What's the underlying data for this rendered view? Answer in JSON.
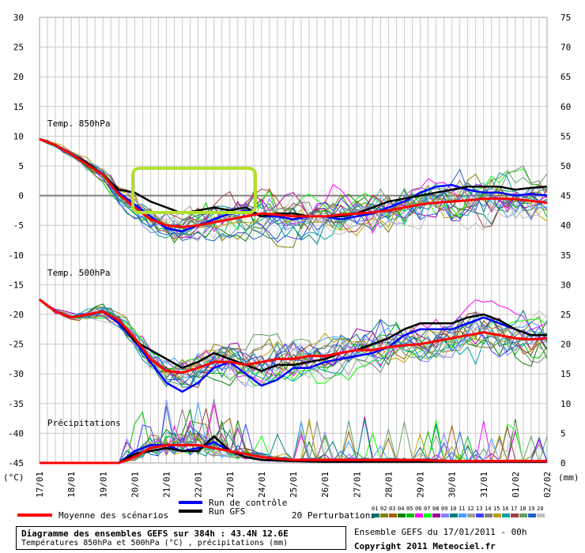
{
  "chart_data": {
    "type": "line",
    "y_left_ticks": [
      30,
      25,
      20,
      15,
      10,
      5,
      0,
      -5,
      -10,
      -15,
      -20,
      -25,
      -30,
      -35,
      -40,
      -45
    ],
    "y_right_ticks": [
      75,
      70,
      65,
      60,
      55,
      50,
      45,
      40,
      35,
      30,
      25,
      20,
      15,
      10,
      5,
      0
    ],
    "ylim_left": [
      -45,
      30
    ],
    "ylim_right_mm": [
      0,
      75
    ],
    "y_unit_left": "(°C)",
    "y_unit_right": "(mm)",
    "x_ticks": [
      "17/01",
      "18/01",
      "19/01",
      "20/01",
      "21/01",
      "22/01",
      "23/01",
      "24/01",
      "25/01",
      "26/01",
      "27/01",
      "28/01",
      "29/01",
      "30/01",
      "31/01",
      "01/02",
      "02/02"
    ],
    "x_days": [
      0,
      16
    ],
    "panel_labels": {
      "t850": "Temp. 850hPa",
      "t500": "Temp. 500hPa",
      "precip": "Précipitations"
    },
    "series": [
      {
        "name": "Moyenne des scénarios",
        "color": "#ff0000",
        "t850": [
          [
            0,
            9.5
          ],
          [
            0.5,
            8.5
          ],
          [
            1,
            7
          ],
          [
            1.5,
            5.2
          ],
          [
            2,
            3.5
          ],
          [
            2.5,
            0.2
          ],
          [
            3,
            -2
          ],
          [
            3.5,
            -4
          ],
          [
            4,
            -5
          ],
          [
            4.5,
            -5.3
          ],
          [
            5,
            -5
          ],
          [
            5.5,
            -4.5
          ],
          [
            6,
            -4
          ],
          [
            6.5,
            -3.5
          ],
          [
            7,
            -3
          ],
          [
            7.5,
            -3.2
          ],
          [
            8,
            -3.5
          ],
          [
            8.5,
            -3.5
          ],
          [
            9,
            -3.5
          ],
          [
            9.5,
            -3.2
          ],
          [
            10,
            -3
          ],
          [
            10.5,
            -2.8
          ],
          [
            11,
            -2.5
          ],
          [
            11.5,
            -2
          ],
          [
            12,
            -1.5
          ],
          [
            12.5,
            -1.2
          ],
          [
            13,
            -1
          ],
          [
            13.5,
            -0.8
          ],
          [
            14,
            -0.5
          ],
          [
            14.5,
            -0.5
          ],
          [
            15,
            -0.6
          ],
          [
            15.5,
            -0.9
          ],
          [
            16,
            -1.2
          ]
        ],
        "t500": [
          [
            0,
            -17.5
          ],
          [
            0.5,
            -19.5
          ],
          [
            1,
            -20.5
          ],
          [
            1.5,
            -20
          ],
          [
            2,
            -19.5
          ],
          [
            2.5,
            -21
          ],
          [
            3,
            -24
          ],
          [
            3.5,
            -27.5
          ],
          [
            4,
            -29.5
          ],
          [
            4.5,
            -29.8
          ],
          [
            5,
            -29
          ],
          [
            5.5,
            -28
          ],
          [
            6,
            -28
          ],
          [
            6.5,
            -28.5
          ],
          [
            7,
            -28
          ],
          [
            7.5,
            -27.5
          ],
          [
            8,
            -27.5
          ],
          [
            8.5,
            -27
          ],
          [
            9,
            -27
          ],
          [
            9.5,
            -26.5
          ],
          [
            10,
            -26
          ],
          [
            10.5,
            -26
          ],
          [
            11,
            -25.5
          ],
          [
            11.5,
            -25.2
          ],
          [
            12,
            -25
          ],
          [
            12.5,
            -24.5
          ],
          [
            13,
            -24
          ],
          [
            13.5,
            -23.5
          ],
          [
            14,
            -23
          ],
          [
            14.5,
            -23.5
          ],
          [
            15,
            -24
          ],
          [
            15.5,
            -24.2
          ],
          [
            16,
            -24
          ]
        ],
        "precip_mm": [
          [
            0,
            0
          ],
          [
            2.5,
            0
          ],
          [
            3,
            1
          ],
          [
            3.5,
            2.5
          ],
          [
            4,
            3
          ],
          [
            4.5,
            3
          ],
          [
            5,
            3
          ],
          [
            5.5,
            2.5
          ],
          [
            6,
            2
          ],
          [
            6.5,
            1.5
          ],
          [
            7,
            1
          ],
          [
            7.5,
            0.7
          ],
          [
            8,
            0.5
          ],
          [
            9,
            0.5
          ],
          [
            10,
            0.5
          ],
          [
            11,
            0.5
          ],
          [
            12,
            0.5
          ],
          [
            13,
            0.3
          ],
          [
            14,
            0.3
          ],
          [
            15,
            0.3
          ],
          [
            16,
            0.3
          ]
        ]
      },
      {
        "name": "Run de contrôle",
        "color": "#0000ff",
        "t850": [
          [
            0,
            9.5
          ],
          [
            0.5,
            8.5
          ],
          [
            1,
            7
          ],
          [
            1.5,
            5.5
          ],
          [
            2,
            3.5
          ],
          [
            2.5,
            0.5
          ],
          [
            3,
            -1.5
          ],
          [
            3.5,
            -3.5
          ],
          [
            4,
            -5.5
          ],
          [
            4.5,
            -6
          ],
          [
            5,
            -5
          ],
          [
            5.5,
            -4
          ],
          [
            6,
            -3
          ],
          [
            6.5,
            -2.5
          ],
          [
            7,
            -3.5
          ],
          [
            7.5,
            -3.5
          ],
          [
            8,
            -4
          ],
          [
            8.5,
            -3.5
          ],
          [
            9,
            -3.5
          ],
          [
            9.5,
            -4
          ],
          [
            10,
            -3.5
          ],
          [
            10.5,
            -3
          ],
          [
            11,
            -2
          ],
          [
            11.5,
            -1
          ],
          [
            12,
            0.5
          ],
          [
            12.5,
            1.5
          ],
          [
            13,
            1.8
          ],
          [
            13.5,
            1
          ],
          [
            14,
            0.5
          ],
          [
            14.5,
            0.5
          ],
          [
            15,
            0
          ],
          [
            15.5,
            0.3
          ],
          [
            16,
            0
          ]
        ],
        "t500": [
          [
            0,
            -17.5
          ],
          [
            0.5,
            -19.5
          ],
          [
            1,
            -20.5
          ],
          [
            1.5,
            -20
          ],
          [
            2,
            -19.5
          ],
          [
            2.5,
            -21.5
          ],
          [
            3,
            -24.5
          ],
          [
            3.5,
            -28
          ],
          [
            4,
            -31.5
          ],
          [
            4.5,
            -33
          ],
          [
            5,
            -31.5
          ],
          [
            5.5,
            -29
          ],
          [
            6,
            -28
          ],
          [
            6.5,
            -30
          ],
          [
            7,
            -32
          ],
          [
            7.5,
            -31
          ],
          [
            8,
            -29
          ],
          [
            8.5,
            -29
          ],
          [
            9,
            -28
          ],
          [
            9.5,
            -27.5
          ],
          [
            10,
            -27
          ],
          [
            10.5,
            -26.5
          ],
          [
            11,
            -25.5
          ],
          [
            11.5,
            -23.5
          ],
          [
            12,
            -22.5
          ],
          [
            12.5,
            -22.5
          ],
          [
            13,
            -22.5
          ],
          [
            13.5,
            -21.5
          ],
          [
            14,
            -20.5
          ],
          [
            14.5,
            -21.5
          ],
          [
            15,
            -22.5
          ],
          [
            15.5,
            -23.5
          ],
          [
            16,
            -23.5
          ]
        ],
        "precip_mm": [
          [
            0,
            0
          ],
          [
            2.5,
            0
          ],
          [
            3,
            2
          ],
          [
            3.5,
            3
          ],
          [
            4,
            3
          ],
          [
            4.5,
            2
          ],
          [
            5,
            2.5
          ],
          [
            5.5,
            3.5
          ],
          [
            6,
            2
          ],
          [
            6.5,
            1
          ],
          [
            7,
            0.5
          ],
          [
            8,
            0.3
          ],
          [
            9,
            0.2
          ],
          [
            10,
            0.2
          ],
          [
            11,
            0.3
          ],
          [
            12,
            0.3
          ],
          [
            13,
            0.2
          ],
          [
            14,
            0.2
          ],
          [
            15,
            0.2
          ],
          [
            16,
            0.2
          ]
        ]
      },
      {
        "name": "Run GFS",
        "color": "#000000",
        "t850": [
          [
            0,
            9.5
          ],
          [
            0.5,
            8.5
          ],
          [
            1,
            7
          ],
          [
            1.5,
            5.5
          ],
          [
            2,
            3.5
          ],
          [
            2.5,
            1
          ],
          [
            3,
            0.5
          ],
          [
            3.5,
            -1
          ],
          [
            4,
            -2
          ],
          [
            4.5,
            -3
          ],
          [
            5,
            -2.5
          ],
          [
            5.5,
            -2
          ],
          [
            6,
            -2.5
          ],
          [
            6.5,
            -2
          ],
          [
            7,
            -3.5
          ],
          [
            7.5,
            -3
          ],
          [
            8,
            -3
          ],
          [
            8.5,
            -3.5
          ],
          [
            9,
            -3.5
          ],
          [
            9.5,
            -3.5
          ],
          [
            10,
            -3
          ],
          [
            10.5,
            -2
          ],
          [
            11,
            -1
          ],
          [
            11.5,
            -0.5
          ],
          [
            12,
            0
          ],
          [
            12.5,
            0.5
          ],
          [
            13,
            1
          ],
          [
            13.5,
            1.5
          ],
          [
            14,
            1.5
          ],
          [
            14.5,
            1.5
          ],
          [
            15,
            1
          ],
          [
            15.5,
            1.3
          ],
          [
            16,
            1.5
          ]
        ],
        "t500": [
          [
            0,
            -17.5
          ],
          [
            0.5,
            -19.5
          ],
          [
            1,
            -20.5
          ],
          [
            1.5,
            -20
          ],
          [
            2,
            -19.5
          ],
          [
            2.5,
            -21
          ],
          [
            3,
            -24.5
          ],
          [
            3.5,
            -26
          ],
          [
            4,
            -27.5
          ],
          [
            4.5,
            -29
          ],
          [
            5,
            -28
          ],
          [
            5.5,
            -26.5
          ],
          [
            6,
            -27.5
          ],
          [
            6.5,
            -28.5
          ],
          [
            7,
            -29.5
          ],
          [
            7.5,
            -28.5
          ],
          [
            8,
            -28.5
          ],
          [
            8.5,
            -28
          ],
          [
            9,
            -27.5
          ],
          [
            9.5,
            -26.5
          ],
          [
            10,
            -26
          ],
          [
            10.5,
            -25
          ],
          [
            11,
            -24
          ],
          [
            11.5,
            -22.5
          ],
          [
            12,
            -21.5
          ],
          [
            12.5,
            -21.5
          ],
          [
            13,
            -21.5
          ],
          [
            13.5,
            -20.5
          ],
          [
            14,
            -20
          ],
          [
            14.5,
            -21
          ],
          [
            15,
            -22.5
          ],
          [
            15.5,
            -23.5
          ],
          [
            16,
            -23.5
          ]
        ],
        "precip_mm": [
          [
            0,
            0
          ],
          [
            2.5,
            0
          ],
          [
            3,
            1.5
          ],
          [
            3.5,
            2
          ],
          [
            4,
            2.5
          ],
          [
            4.5,
            2
          ],
          [
            5,
            2
          ],
          [
            5.5,
            4.5
          ],
          [
            6,
            2
          ],
          [
            6.5,
            1
          ],
          [
            7,
            0.5
          ],
          [
            8,
            0.3
          ],
          [
            9,
            0.2
          ],
          [
            10,
            0.2
          ],
          [
            11,
            0.2
          ],
          [
            12,
            0.2
          ],
          [
            13,
            0.2
          ],
          [
            14,
            0.2
          ],
          [
            15,
            0.2
          ],
          [
            16,
            0.2
          ]
        ]
      }
    ],
    "perturbation_colors": [
      "#007070",
      "#808000",
      "#a06000",
      "#008000",
      "#00c000",
      "#ff00ff",
      "#00ff00",
      "#a000a0",
      "#8080ff",
      "#008080",
      "#40a0ff",
      "#a0a0a0",
      "#4040ff",
      "#808080",
      "#c0a000",
      "#00a0a0",
      "#a04040",
      "#60a060",
      "#2060c0",
      "#c0c0c0"
    ],
    "highlight_box_color": "#b2e02e",
    "grid": true
  },
  "legend": {
    "mean_label": "Moyenne des scénarios",
    "control_label": "Run de contrôle",
    "gfs_label": "Run GFS",
    "perturbations_label": "20 Perturbations",
    "perturbation_numbers": [
      "01",
      "02",
      "03",
      "04",
      "05",
      "06",
      "07",
      "08",
      "09",
      "10",
      "11",
      "12",
      "13",
      "14",
      "15",
      "16",
      "17",
      "18",
      "19",
      "20"
    ]
  },
  "info": {
    "title": "Diagramme des ensembles GEFS sur 384h : 43.4N 12.6E",
    "subtitle": "Températures 850hPa et 500hPa (°C) , précipitations (mm)",
    "ensemble_run": "Ensemble GEFS du 17/01/2011 - 00h",
    "copyright": "Copyright 2011 Meteociel.fr"
  }
}
